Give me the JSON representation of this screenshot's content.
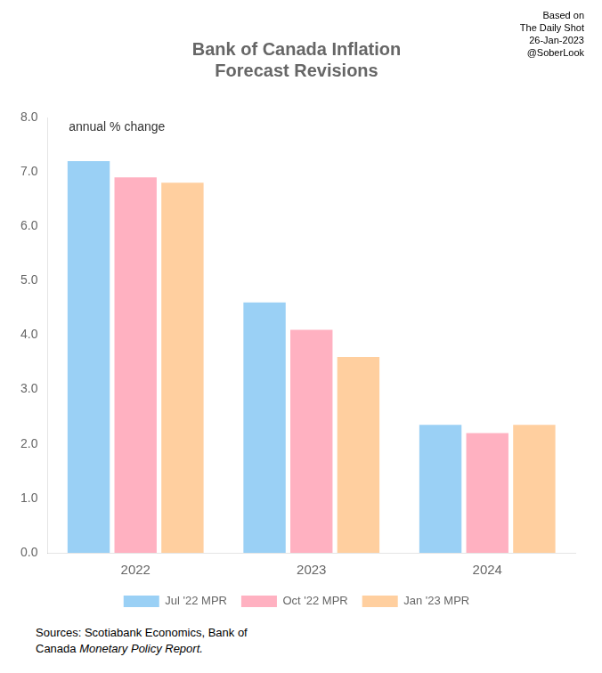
{
  "chart_data": {
    "type": "bar",
    "title": [
      "Bank of Canada Inflation",
      "Forecast Revisions"
    ],
    "annotation": "annual % change",
    "watermark": [
      "Based on",
      "The Daily Shot",
      "26-Jan-2023",
      "@SoberLook"
    ],
    "source": [
      "Sources: Scotiabank Economics, Bank of",
      [
        "Canada ",
        "Monetary Policy Report."
      ]
    ],
    "categories": [
      "2022",
      "2023",
      "2024"
    ],
    "series": [
      {
        "name": "Jul '22 MPR",
        "values": [
          7.2,
          4.6,
          2.35
        ]
      },
      {
        "name": "Oct '22 MPR",
        "values": [
          6.9,
          4.1,
          2.2
        ]
      },
      {
        "name": "Jan '23 MPR",
        "values": [
          6.8,
          3.6,
          2.35
        ]
      }
    ],
    "ylim": [
      0,
      8.0
    ],
    "yticks": [
      {
        "value": 0,
        "label": "0.0"
      },
      {
        "value": 1,
        "label": "1.0"
      },
      {
        "value": 2,
        "label": "2.0"
      },
      {
        "value": 3,
        "label": "3.0"
      },
      {
        "value": 4,
        "label": "4.0"
      },
      {
        "value": 5,
        "label": "5.0"
      },
      {
        "value": 6,
        "label": "6.0"
      },
      {
        "value": 7,
        "label": "7.0"
      },
      {
        "value": 8,
        "label": "8.0"
      }
    ],
    "grid": false,
    "legend": "bottom"
  }
}
